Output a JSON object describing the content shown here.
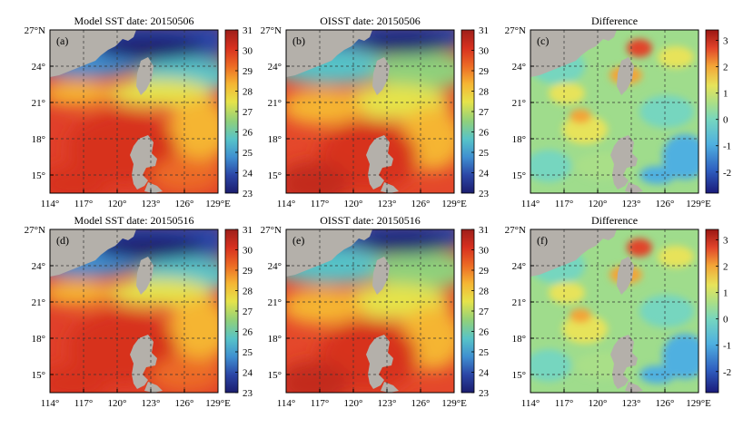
{
  "figure": {
    "panels": [
      {
        "id": "a",
        "letter": "(a)",
        "title": "Model SST date: 20150506",
        "kind": "sst"
      },
      {
        "id": "b",
        "letter": "(b)",
        "title": "OISST date: 20150506",
        "kind": "sst"
      },
      {
        "id": "c",
        "letter": "(c)",
        "title": "Difference",
        "kind": "diff"
      },
      {
        "id": "d",
        "letter": "(d)",
        "title": "Model SST date: 20150516",
        "kind": "sst"
      },
      {
        "id": "e",
        "letter": "(e)",
        "title": "OISST date: 20150516",
        "kind": "sst"
      },
      {
        "id": "f",
        "letter": "(f)",
        "title": "Difference",
        "kind": "diff"
      }
    ],
    "x_ticks": [
      "114°",
      "117°",
      "120°",
      "123°",
      "126°",
      "129°E"
    ],
    "y_ticks": [
      "27°N",
      "24°",
      "21°",
      "18°",
      "15°"
    ],
    "sst_colorbar": {
      "ticks": [
        "31",
        "30",
        "29",
        "28",
        "27",
        "26",
        "25",
        "24",
        "23"
      ],
      "range": [
        23,
        31
      ]
    },
    "diff_colorbar": {
      "ticks": [
        "3",
        "2",
        "1",
        "0",
        "-1",
        "-2"
      ],
      "range": [
        -2.8,
        3.4
      ]
    },
    "colors": {
      "land": "#b4b0aa",
      "sst_scale": [
        "#1b1d6e",
        "#2b46a6",
        "#3f8fd0",
        "#57c3c8",
        "#8fd07c",
        "#e6e34a",
        "#f5b533",
        "#ec6a25",
        "#d7301f",
        "#9e1f1a"
      ],
      "diff_scale": [
        "#1a1a7a",
        "#2f5fc0",
        "#4fb0e0",
        "#76d6bf",
        "#a9df88",
        "#e7e35a",
        "#f3a437",
        "#e1442a",
        "#9b1612"
      ]
    }
  }
}
